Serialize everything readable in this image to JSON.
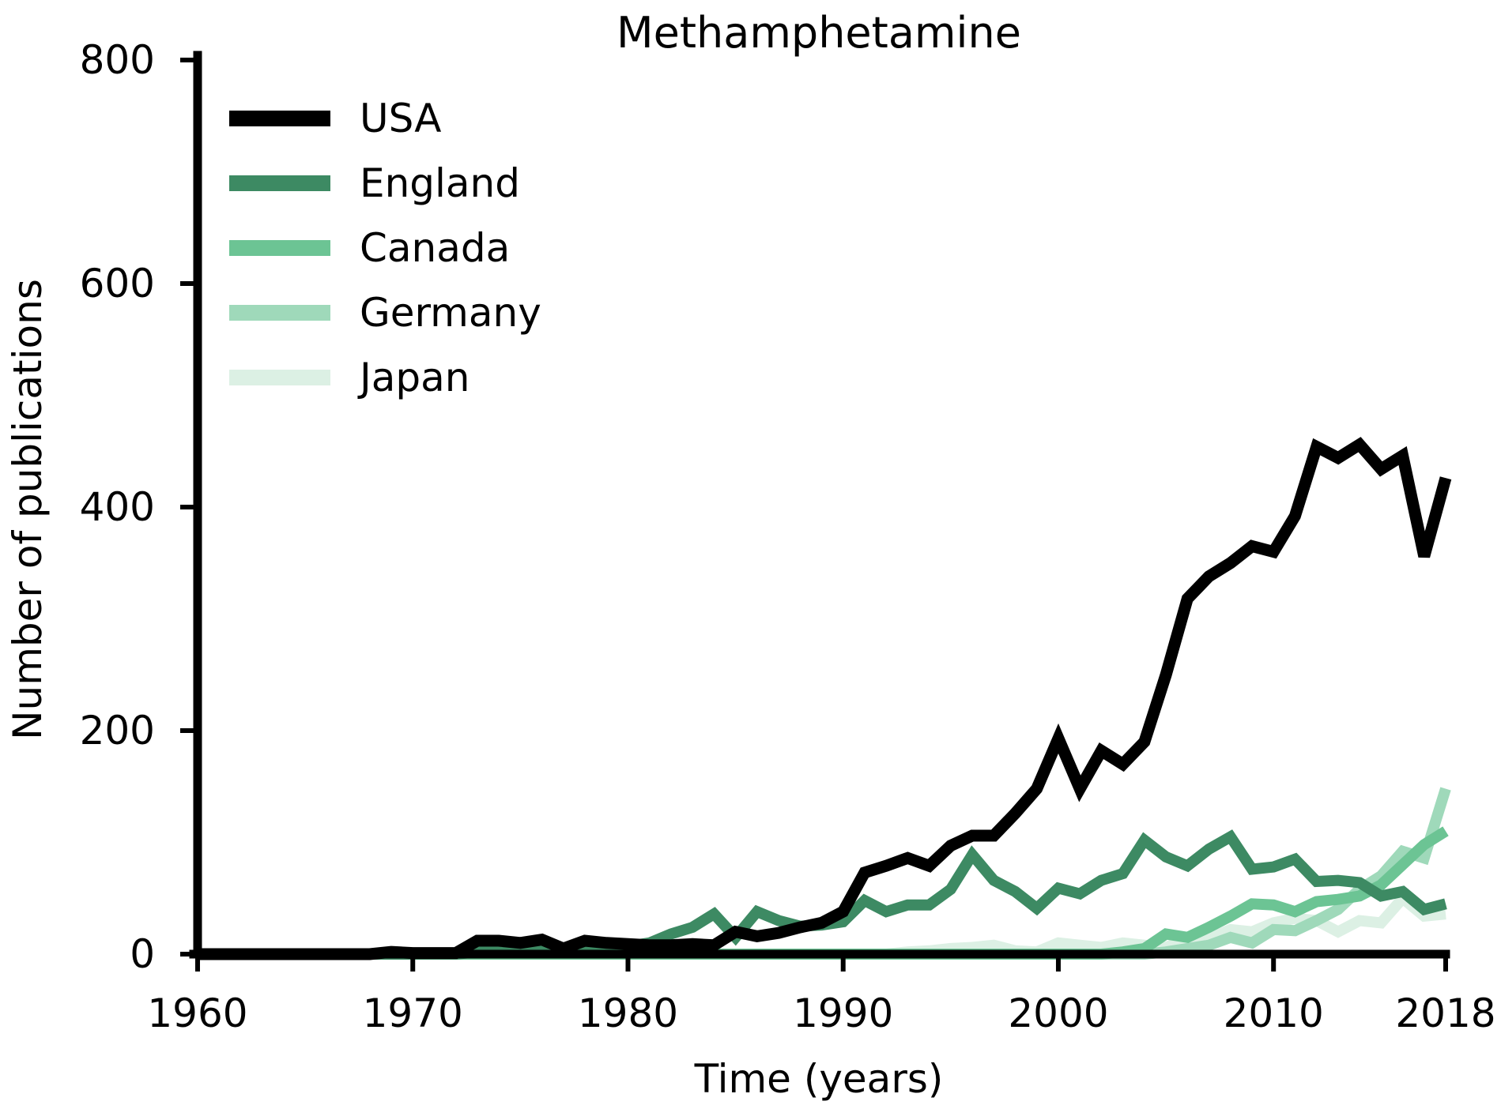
{
  "chart_data": {
    "type": "line",
    "title": "Methamphetamine",
    "xlabel": "Time (years)",
    "ylabel": "Number of publications",
    "xlim": [
      1960,
      2018
    ],
    "ylim": [
      0,
      800
    ],
    "xticks": [
      1960,
      1970,
      1980,
      1990,
      2000,
      2010,
      2018
    ],
    "yticks": [
      0,
      200,
      400,
      600,
      800
    ],
    "grid": false,
    "legend_position": "top-left",
    "series": [
      {
        "name": "USA",
        "color": "#000000",
        "x": [
          1960,
          1961,
          1962,
          1963,
          1964,
          1965,
          1966,
          1967,
          1968,
          1969,
          1970,
          1971,
          1972,
          1973,
          1974,
          1975,
          1976,
          1977,
          1978,
          1979,
          1980,
          1981,
          1982,
          1983,
          1984,
          1985,
          1986,
          1987,
          1988,
          1989,
          1990,
          1991,
          1992,
          1993,
          1994,
          1995,
          1996,
          1997,
          1998,
          1999,
          2000,
          2001,
          2002,
          2003,
          2004,
          2005,
          2006,
          2007,
          2008,
          2009,
          2010,
          2011,
          2012,
          2013,
          2014,
          2015,
          2016,
          2017,
          2018
        ],
        "values": [
          0,
          0,
          0,
          0,
          0,
          0,
          0,
          0,
          0,
          2,
          1,
          1,
          1,
          12,
          12,
          10,
          13,
          5,
          12,
          10,
          9,
          8,
          8,
          9,
          8,
          20,
          16,
          19,
          24,
          28,
          38,
          73,
          79,
          86,
          79,
          97,
          106,
          106,
          126,
          148,
          193,
          148,
          182,
          170,
          190,
          250,
          318,
          338,
          350,
          365,
          360,
          392,
          454,
          444,
          456,
          434,
          446,
          356,
          426
        ]
      },
      {
        "name": "England",
        "color": "#3d8a63",
        "x": [
          1960,
          1961,
          1962,
          1963,
          1964,
          1965,
          1966,
          1967,
          1968,
          1969,
          1970,
          1971,
          1972,
          1973,
          1974,
          1975,
          1976,
          1977,
          1978,
          1979,
          1980,
          1981,
          1982,
          1983,
          1984,
          1985,
          1986,
          1987,
          1988,
          1989,
          1990,
          1991,
          1992,
          1993,
          1994,
          1995,
          1996,
          1997,
          1998,
          1999,
          2000,
          2001,
          2002,
          2003,
          2004,
          2005,
          2006,
          2007,
          2008,
          2009,
          2010,
          2011,
          2012,
          2013,
          2014,
          2015,
          2016,
          2017,
          2018
        ],
        "values": [
          0,
          0,
          0,
          0,
          0,
          0,
          0,
          0,
          0,
          0,
          0,
          0,
          0,
          2,
          3,
          3,
          4,
          5,
          4,
          6,
          7,
          10,
          18,
          24,
          36,
          15,
          38,
          30,
          25,
          26,
          29,
          48,
          38,
          44,
          44,
          58,
          89,
          66,
          56,
          41,
          59,
          54,
          66,
          72,
          102,
          87,
          79,
          94,
          105,
          76,
          78,
          85,
          65,
          66,
          64,
          52,
          56,
          40,
          45
        ]
      },
      {
        "name": "Canada",
        "color": "#6cc494",
        "x": [
          1960,
          1961,
          1962,
          1963,
          1964,
          1965,
          1966,
          1967,
          1968,
          1969,
          1970,
          1971,
          1972,
          1973,
          1974,
          1975,
          1976,
          1977,
          1978,
          1979,
          1980,
          1981,
          1982,
          1983,
          1984,
          1985,
          1986,
          1987,
          1988,
          1989,
          1990,
          1991,
          1992,
          1993,
          1994,
          1995,
          1996,
          1997,
          1998,
          1999,
          2000,
          2001,
          2002,
          2003,
          2004,
          2005,
          2006,
          2007,
          2008,
          2009,
          2010,
          2011,
          2012,
          2013,
          2014,
          2015,
          2016,
          2017,
          2018
        ],
        "values": [
          0,
          0,
          0,
          0,
          0,
          0,
          0,
          0,
          0,
          0,
          0,
          0,
          0,
          0,
          0,
          0,
          0,
          0,
          0,
          0,
          0,
          0,
          0,
          0,
          0,
          0,
          0,
          0,
          0,
          0,
          0,
          0,
          0,
          0,
          0,
          0,
          0,
          0,
          0,
          0,
          0,
          0,
          0,
          2,
          5,
          18,
          15,
          24,
          34,
          45,
          44,
          38,
          47,
          49,
          52,
          62,
          80,
          98,
          110
        ]
      },
      {
        "name": "Germany",
        "color": "#9fd9ba",
        "x": [
          1960,
          1961,
          1962,
          1963,
          1964,
          1965,
          1966,
          1967,
          1968,
          1969,
          1970,
          1971,
          1972,
          1973,
          1974,
          1975,
          1976,
          1977,
          1978,
          1979,
          1980,
          1981,
          1982,
          1983,
          1984,
          1985,
          1986,
          1987,
          1988,
          1989,
          1990,
          1991,
          1992,
          1993,
          1994,
          1995,
          1996,
          1997,
          1998,
          1999,
          2000,
          2001,
          2002,
          2003,
          2004,
          2005,
          2006,
          2007,
          2008,
          2009,
          2010,
          2011,
          2012,
          2013,
          2014,
          2015,
          2016,
          2017,
          2018
        ],
        "values": [
          0,
          0,
          0,
          0,
          0,
          0,
          0,
          0,
          0,
          0,
          0,
          0,
          0,
          0,
          0,
          0,
          0,
          0,
          0,
          0,
          0,
          0,
          0,
          0,
          0,
          0,
          0,
          0,
          0,
          0,
          0,
          0,
          0,
          0,
          0,
          0,
          0,
          0,
          0,
          0,
          0,
          0,
          0,
          0,
          0,
          2,
          5,
          8,
          15,
          10,
          22,
          21,
          30,
          40,
          58,
          70,
          92,
          86,
          148
        ]
      },
      {
        "name": "Japan",
        "color": "#dcf0e4",
        "x": [
          1960,
          1961,
          1962,
          1963,
          1964,
          1965,
          1966,
          1967,
          1968,
          1969,
          1970,
          1971,
          1972,
          1973,
          1974,
          1975,
          1976,
          1977,
          1978,
          1979,
          1980,
          1981,
          1982,
          1983,
          1984,
          1985,
          1986,
          1987,
          1988,
          1989,
          1990,
          1991,
          1992,
          1993,
          1994,
          1995,
          1996,
          1997,
          1998,
          1999,
          2000,
          2001,
          2002,
          2003,
          2004,
          2005,
          2006,
          2007,
          2008,
          2009,
          2010,
          2011,
          2012,
          2013,
          2014,
          2015,
          2016,
          2017,
          2018
        ],
        "values": [
          0,
          0,
          0,
          0,
          0,
          0,
          0,
          0,
          0,
          0,
          0,
          0,
          0,
          0,
          0,
          0,
          0,
          0,
          0,
          0,
          0,
          0,
          0,
          0,
          0,
          0,
          0,
          0,
          0,
          0,
          0,
          0,
          0,
          2,
          3,
          5,
          6,
          8,
          3,
          2,
          10,
          8,
          6,
          10,
          8,
          6,
          14,
          14,
          22,
          20,
          28,
          32,
          30,
          20,
          30,
          28,
          50,
          34,
          36
        ]
      }
    ]
  }
}
